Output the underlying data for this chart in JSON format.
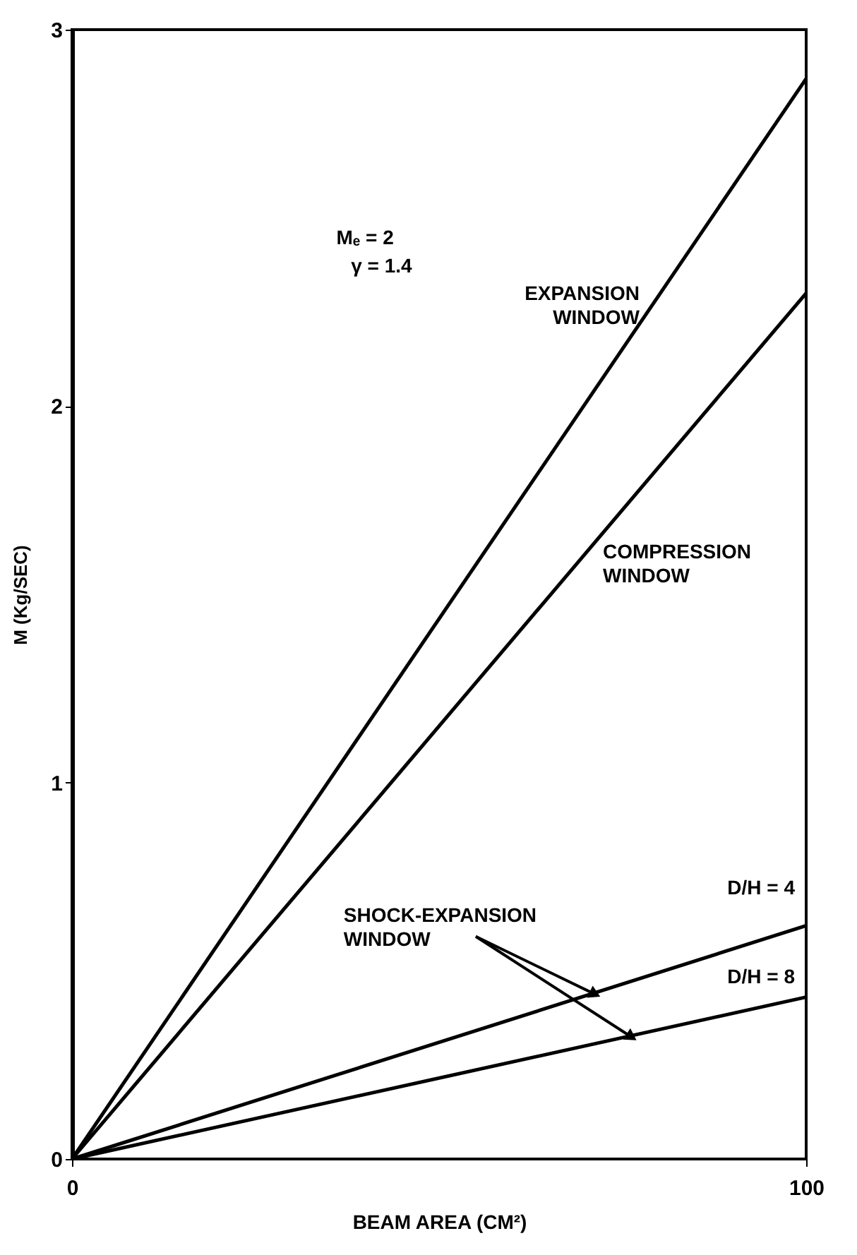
{
  "chart_data": {
    "type": "line",
    "xlabel": "BEAM AREA (CM²)",
    "ylabel": "M (Kg/SEC)",
    "x": [
      0,
      100
    ],
    "series": [
      {
        "name": "EXPANSION WINDOW",
        "color": "#000000",
        "values": [
          0,
          2.87
        ]
      },
      {
        "name": "COMPRESSION WINDOW",
        "color": "#000000",
        "values": [
          0,
          2.3
        ]
      },
      {
        "name": "D/H = 4",
        "color": "#000000",
        "values": [
          0,
          0.62
        ]
      },
      {
        "name": "D/H = 8",
        "color": "#000000",
        "values": [
          0,
          0.43
        ]
      }
    ],
    "annotations": [
      "Mₑ = 2",
      "γ = 1.4",
      {
        "text": "SHOCK-EXPANSION WINDOW",
        "x": 71,
        "y": 0.44
      }
    ],
    "xlim": [
      0,
      100
    ],
    "ylim": [
      0,
      3
    ],
    "xticks": [
      0,
      100
    ],
    "yticks": [
      0,
      1,
      2,
      3
    ],
    "grid": false,
    "legend": false,
    "marker": "none",
    "line_style": "solid"
  }
}
